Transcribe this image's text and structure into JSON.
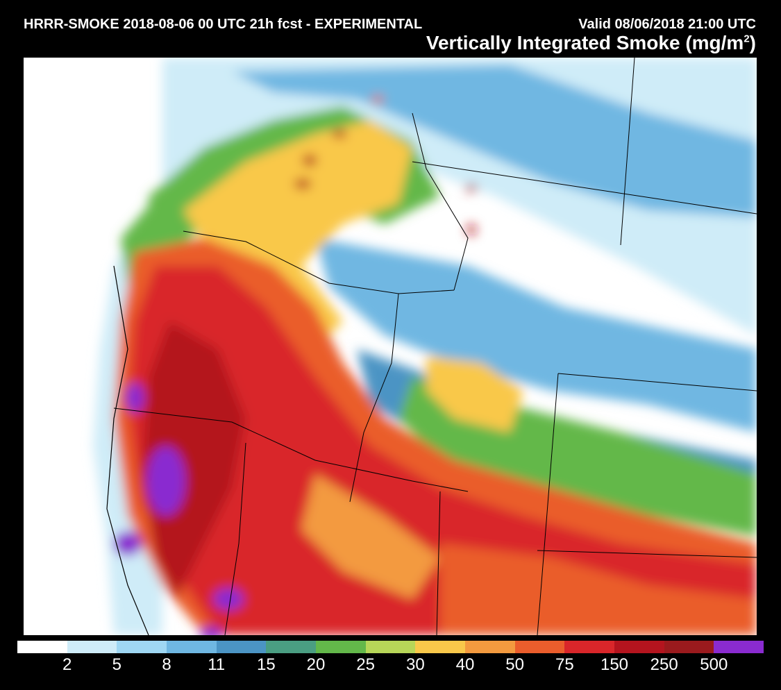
{
  "header": {
    "run_title": "HRRR-SMOKE 2018-08-06 00 UTC 21h fcst - EXPERIMENTAL",
    "valid_time": "Valid 08/06/2018 21:00 UTC",
    "product_title": "Vertically Integrated Smoke (mg/m",
    "product_unit_exp": "2",
    "product_title_end": ")"
  },
  "colorbar": {
    "colors": [
      "#ffffff",
      "#cfecf8",
      "#9fd7f3",
      "#6fb7e2",
      "#4b94c4",
      "#4a9e82",
      "#63b84a",
      "#b7d658",
      "#f9c84a",
      "#f39a3f",
      "#ea5d2c",
      "#d9262a",
      "#b4141e",
      "#9a1a1d",
      "#8a2bd0"
    ],
    "labels": [
      "2",
      "5",
      "8",
      "11",
      "15",
      "20",
      "25",
      "30",
      "40",
      "50",
      "75",
      "150",
      "250",
      "500"
    ]
  }
}
